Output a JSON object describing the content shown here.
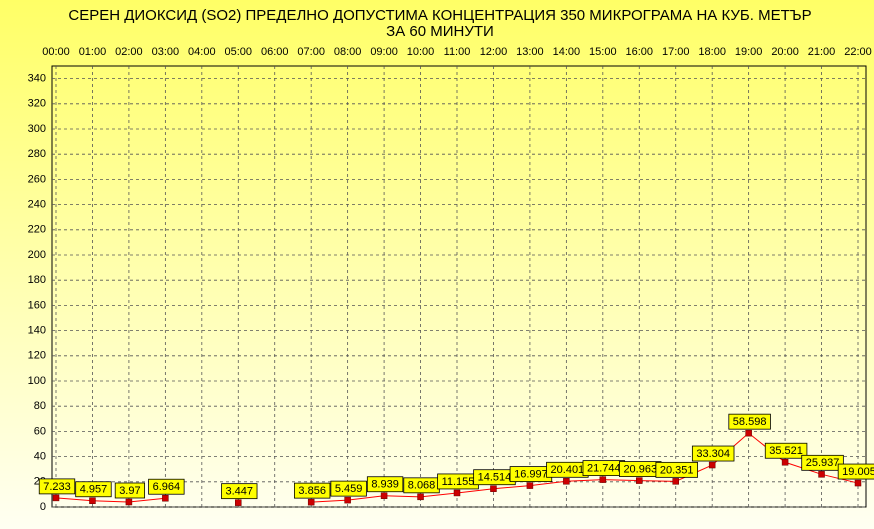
{
  "chart_data": {
    "type": "line",
    "title": "СЕРЕН ДИОКСИД  (SO2)  ПРЕДЕЛНО ДОПУСТИМА КОНЦЕНТРАЦИЯ 350 МИКРОГРАМА  НА КУБ. МЕТЪР",
    "subtitle": "ЗА 60 МИНУТИ",
    "categories": [
      "00:00",
      "01:00",
      "02:00",
      "03:00",
      "04:00",
      "05:00",
      "06:00",
      "07:00",
      "08:00",
      "09:00",
      "10:00",
      "11:00",
      "12:00",
      "13:00",
      "14:00",
      "15:00",
      "16:00",
      "17:00",
      "18:00",
      "19:00",
      "20:00",
      "21:00",
      "22:00"
    ],
    "series": [
      {
        "color": "#ff0000",
        "values": [
          7.233,
          4.957,
          3.97,
          6.964,
          null,
          3.447,
          null,
          3.856,
          5.459,
          8.939,
          8.068,
          11.155,
          14.514,
          16.997,
          20.401,
          21.744,
          20.963,
          20.351,
          33.304,
          58.598,
          35.521,
          25.937,
          19.005
        ]
      }
    ],
    "ylim": [
      0,
      350
    ],
    "yticks": [
      0,
      20,
      40,
      60,
      80,
      100,
      120,
      140,
      160,
      180,
      200,
      220,
      240,
      260,
      280,
      300,
      320,
      340
    ],
    "grid": true
  }
}
